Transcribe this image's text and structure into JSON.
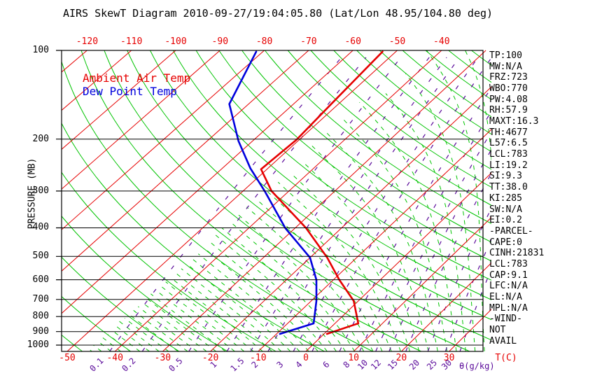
{
  "title": "AIRS SkewT Diagram 2010-09-27/19:04:05.80 (Lat/Lon 48.95/104.80 deg)",
  "legend": {
    "ambient_label": "Ambient Air Temp",
    "dewpoint_label": "Dew Point Temp"
  },
  "axes": {
    "pressure_axis_label": "PRESSURE (MB)",
    "pressure_ticks": [
      100,
      200,
      300,
      400,
      500,
      600,
      700,
      800,
      900,
      1000
    ],
    "top_temperature_ticks": [
      -120,
      -110,
      -100,
      -90,
      -80,
      -70,
      -60,
      -50,
      -40
    ],
    "bottom_temperature_ticks": [
      -50,
      -40,
      -30,
      -20,
      -10,
      0,
      10,
      20,
      30
    ],
    "temperature_unit_label": "T(C)",
    "mixing_ratio_unit_label": "θ(g/kg)"
  },
  "stats_panel": {
    "lines": [
      "TP:100",
      "MW:N/A",
      "FRZ:723",
      "WBO:770",
      "PW:4.08",
      "RH:57.9",
      "MAXT:16.3",
      "TH:4677",
      "L57:6.5",
      "LCL:783",
      "LI:19.2",
      "SI:9.3",
      "TT:38.0",
      "KI:285",
      "SW:N/A",
      "EI:0.2",
      "-PARCEL-",
      "CAPE:0",
      "CINH:21831",
      "LCL:783",
      "CAP:9.1",
      "LFC:N/A",
      "EL:N/A",
      "MPL:N/A",
      "-WIND-",
      "NOT",
      "AVAIL"
    ]
  },
  "colors": {
    "ambient": "#e60000",
    "dewpoint": "#0000dd",
    "isotherm": "#e60000",
    "adiabat": "#00c300",
    "mixing_ratio": "#5a0a9a",
    "grid": "#000000"
  },
  "chart_data": {
    "type": "line",
    "title": "AIRS SkewT Diagram 2010-09-27/19:04:05.80 (Lat/Lon 48.95/104.80 deg)",
    "x_axis": {
      "label": "T(C)",
      "skewed": true,
      "bottom_range_c": [
        -50,
        40
      ],
      "top_range_c": [
        -130,
        -30
      ]
    },
    "y_axis": {
      "label": "PRESSURE (MB)",
      "scale": "log",
      "range_mb": [
        100,
        1050
      ]
    },
    "legend_position": "top-left-inside",
    "series": [
      {
        "name": "Ambient Air Temp",
        "color_key": "ambient",
        "points_p_t": [
          [
            101,
            -53.0
          ],
          [
            153,
            -51.6
          ],
          [
            201,
            -50.6
          ],
          [
            253,
            -51.3
          ],
          [
            300,
            -43.8
          ],
          [
            401,
            -27.6
          ],
          [
            505,
            -16.3
          ],
          [
            601,
            -8.7
          ],
          [
            708,
            -1.0
          ],
          [
            844,
            4.9
          ],
          [
            916,
            0.6
          ]
        ]
      },
      {
        "name": "Dew Point Temp",
        "color_key": "dewpoint",
        "points_p_t": [
          [
            101,
            -81.5
          ],
          [
            152,
            -74.3
          ],
          [
            203,
            -63.1
          ],
          [
            251,
            -53.9
          ],
          [
            300,
            -45.3
          ],
          [
            401,
            -32.1
          ],
          [
            505,
            -20.0
          ],
          [
            601,
            -13.6
          ],
          [
            708,
            -8.9
          ],
          [
            844,
            -4.5
          ],
          [
            916,
            -9.3
          ]
        ]
      }
    ],
    "graticule": {
      "isotherms_c": {
        "min": -130,
        "max": 40,
        "step": 10
      },
      "dry_adiabats_theta_c": {
        "min": -50,
        "max": 200,
        "step": 10
      },
      "moist_adiabats_thetaw_c": {
        "min": -50,
        "max": 66,
        "step": 2,
        "cutoff_temp_c": -46
      },
      "mixing_ratio_lines_g_kg": [
        0.1,
        0.2,
        0.5,
        1,
        1.5,
        2,
        3,
        4,
        6,
        8,
        10,
        12,
        15,
        20,
        25,
        30
      ]
    }
  }
}
